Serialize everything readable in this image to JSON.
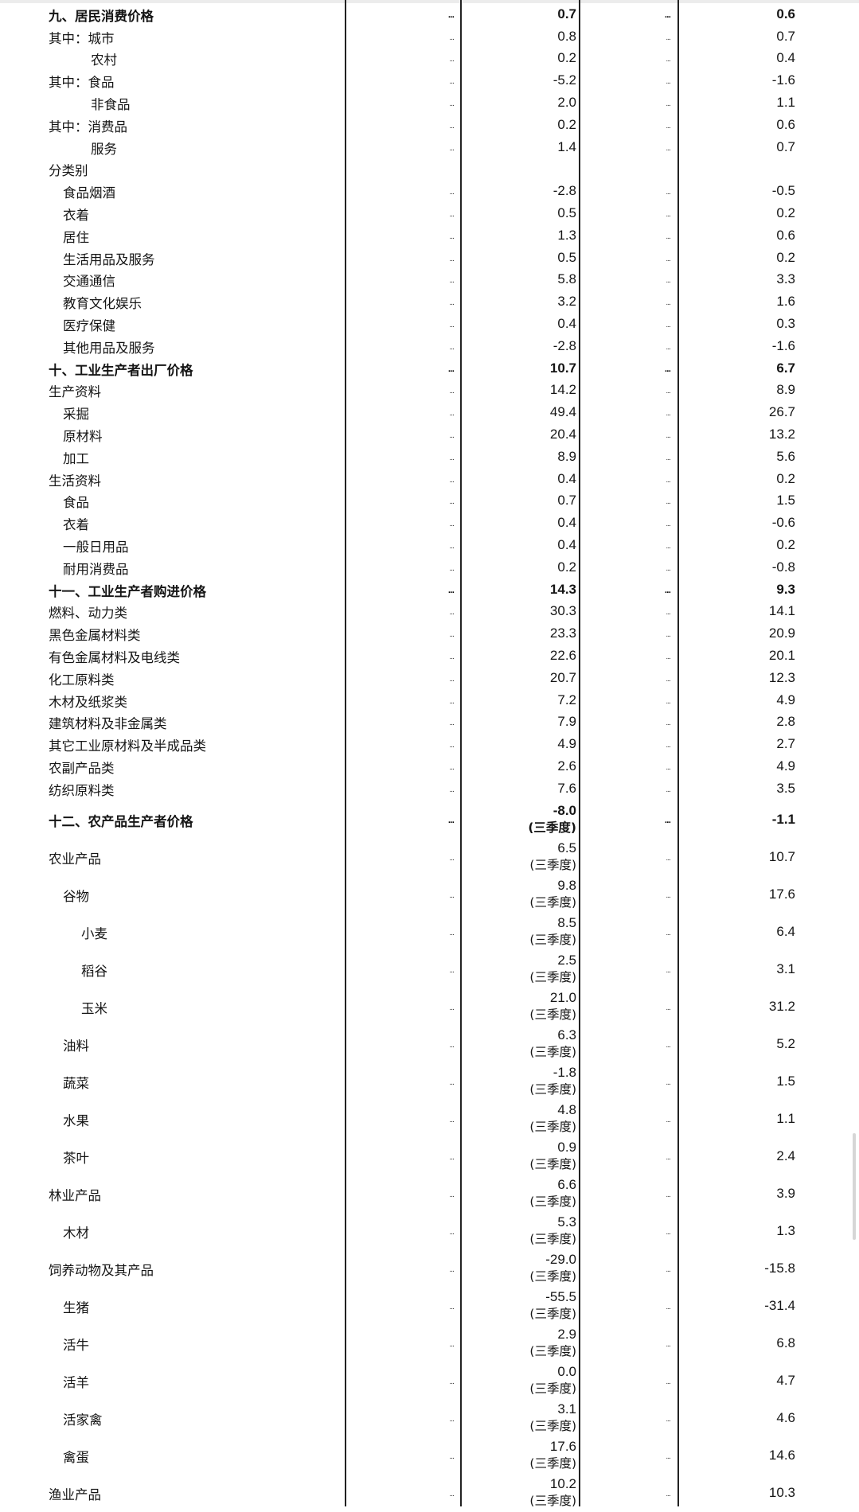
{
  "table": {
    "dots": "...",
    "note": "(三季度)",
    "rows": [
      {
        "label": "九、居民消费价格",
        "indent": 0,
        "bold": true,
        "v1": "0.7",
        "v2": "0.6"
      },
      {
        "label": "其中：城市",
        "indent": 0,
        "v1": "0.8",
        "v2": "0.7"
      },
      {
        "label": "农村",
        "indent": 3,
        "v1": "0.2",
        "v2": "0.4"
      },
      {
        "label": "其中：食品",
        "indent": 0,
        "v1": "-5.2",
        "v2": "-1.6"
      },
      {
        "label": "非食品",
        "indent": 3,
        "v1": "2.0",
        "v2": "1.1"
      },
      {
        "label": "其中：消费品",
        "indent": 0,
        "v1": "0.2",
        "v2": "0.6"
      },
      {
        "label": "服务",
        "indent": 3,
        "v1": "1.4",
        "v2": "0.7"
      },
      {
        "label": "分类别",
        "indent": 0,
        "nodots": true,
        "v1": "",
        "v2": ""
      },
      {
        "label": "食品烟酒",
        "indent": 1,
        "v1": "-2.8",
        "v2": "-0.5"
      },
      {
        "label": "衣着",
        "indent": 1,
        "v1": "0.5",
        "v2": "0.2"
      },
      {
        "label": "居住",
        "indent": 1,
        "v1": "1.3",
        "v2": "0.6"
      },
      {
        "label": "生活用品及服务",
        "indent": 1,
        "v1": "0.5",
        "v2": "0.2"
      },
      {
        "label": "交通通信",
        "indent": 1,
        "v1": "5.8",
        "v2": "3.3"
      },
      {
        "label": "教育文化娱乐",
        "indent": 1,
        "v1": "3.2",
        "v2": "1.6"
      },
      {
        "label": "医疗保健",
        "indent": 1,
        "v1": "0.4",
        "v2": "0.3"
      },
      {
        "label": "其他用品及服务",
        "indent": 1,
        "v1": "-2.8",
        "v2": "-1.6"
      },
      {
        "label": "十、工业生产者出厂价格",
        "indent": 0,
        "bold": true,
        "v1": "10.7",
        "v2": "6.7"
      },
      {
        "label": "生产资料",
        "indent": 0,
        "v1": "14.2",
        "v2": "8.9"
      },
      {
        "label": "采掘",
        "indent": 1,
        "v1": "49.4",
        "v2": "26.7"
      },
      {
        "label": "原材料",
        "indent": 1,
        "v1": "20.4",
        "v2": "13.2"
      },
      {
        "label": "加工",
        "indent": 1,
        "v1": "8.9",
        "v2": "5.6"
      },
      {
        "label": "生活资料",
        "indent": 0,
        "v1": "0.4",
        "v2": "0.2"
      },
      {
        "label": "食品",
        "indent": 1,
        "v1": "0.7",
        "v2": "1.5"
      },
      {
        "label": "衣着",
        "indent": 1,
        "v1": "0.4",
        "v2": "-0.6"
      },
      {
        "label": "一般日用品",
        "indent": 1,
        "v1": "0.4",
        "v2": "0.2"
      },
      {
        "label": "耐用消费品",
        "indent": 1,
        "v1": "0.2",
        "v2": "-0.8"
      },
      {
        "label": "十一、工业生产者购进价格",
        "indent": 0,
        "bold": true,
        "v1": "14.3",
        "v2": "9.3"
      },
      {
        "label": "燃料、动力类",
        "indent": 0,
        "v1": "30.3",
        "v2": "14.1"
      },
      {
        "label": "黑色金属材料类",
        "indent": 0,
        "v1": "23.3",
        "v2": "20.9"
      },
      {
        "label": "有色金属材料及电线类",
        "indent": 0,
        "v1": "22.6",
        "v2": "20.1"
      },
      {
        "label": "化工原料类",
        "indent": 0,
        "v1": "20.7",
        "v2": "12.3"
      },
      {
        "label": "木材及纸浆类",
        "indent": 0,
        "v1": "7.2",
        "v2": "4.9"
      },
      {
        "label": "建筑材料及非金属类",
        "indent": 0,
        "v1": "7.9",
        "v2": "2.8"
      },
      {
        "label": "其它工业原材料及半成品类",
        "indent": 0,
        "v1": "4.9",
        "v2": "2.7"
      },
      {
        "label": "农副产品类",
        "indent": 0,
        "v1": "2.6",
        "v2": "4.9"
      },
      {
        "label": "纺织原料类",
        "indent": 0,
        "v1": "7.6",
        "v2": "3.5"
      },
      {
        "label": "十二、农产品生产者价格",
        "indent": 0,
        "bold": true,
        "q": true,
        "v1": "-8.0",
        "v2": "-1.1"
      },
      {
        "label": "农业产品",
        "indent": 0,
        "q": true,
        "v1": "6.5",
        "v2": "10.7"
      },
      {
        "label": "谷物",
        "indent": 1,
        "q": true,
        "v1": "9.8",
        "v2": "17.6"
      },
      {
        "label": "小麦",
        "indent": 2,
        "q": true,
        "v1": "8.5",
        "v2": "6.4"
      },
      {
        "label": "稻谷",
        "indent": 2,
        "q": true,
        "v1": "2.5",
        "v2": "3.1"
      },
      {
        "label": "玉米",
        "indent": 2,
        "q": true,
        "v1": "21.0",
        "v2": "31.2"
      },
      {
        "label": "油料",
        "indent": 1,
        "q": true,
        "v1": "6.3",
        "v2": "5.2"
      },
      {
        "label": "蔬菜",
        "indent": 1,
        "q": true,
        "v1": "-1.8",
        "v2": "1.5"
      },
      {
        "label": "水果",
        "indent": 1,
        "q": true,
        "v1": "4.8",
        "v2": "1.1"
      },
      {
        "label": "茶叶",
        "indent": 1,
        "q": true,
        "v1": "0.9",
        "v2": "2.4"
      },
      {
        "label": "林业产品",
        "indent": 0,
        "q": true,
        "v1": "6.6",
        "v2": "3.9"
      },
      {
        "label": "木材",
        "indent": 1,
        "q": true,
        "v1": "5.3",
        "v2": "1.3"
      },
      {
        "label": "饲养动物及其产品",
        "indent": 0,
        "q": true,
        "v1": "-29.0",
        "v2": "-15.8"
      },
      {
        "label": "生猪",
        "indent": 1,
        "q": true,
        "v1": "-55.5",
        "v2": "-31.4"
      },
      {
        "label": "活牛",
        "indent": 1,
        "q": true,
        "v1": "2.9",
        "v2": "6.8"
      },
      {
        "label": "活羊",
        "indent": 1,
        "q": true,
        "v1": "0.0",
        "v2": "4.7"
      },
      {
        "label": "活家禽",
        "indent": 1,
        "q": true,
        "v1": "3.1",
        "v2": "4.6"
      },
      {
        "label": "禽蛋",
        "indent": 1,
        "q": true,
        "v1": "17.6",
        "v2": "14.6"
      },
      {
        "label": "渔业产品",
        "indent": 0,
        "q": true,
        "v1": "10.2",
        "v2": "10.3"
      }
    ]
  }
}
